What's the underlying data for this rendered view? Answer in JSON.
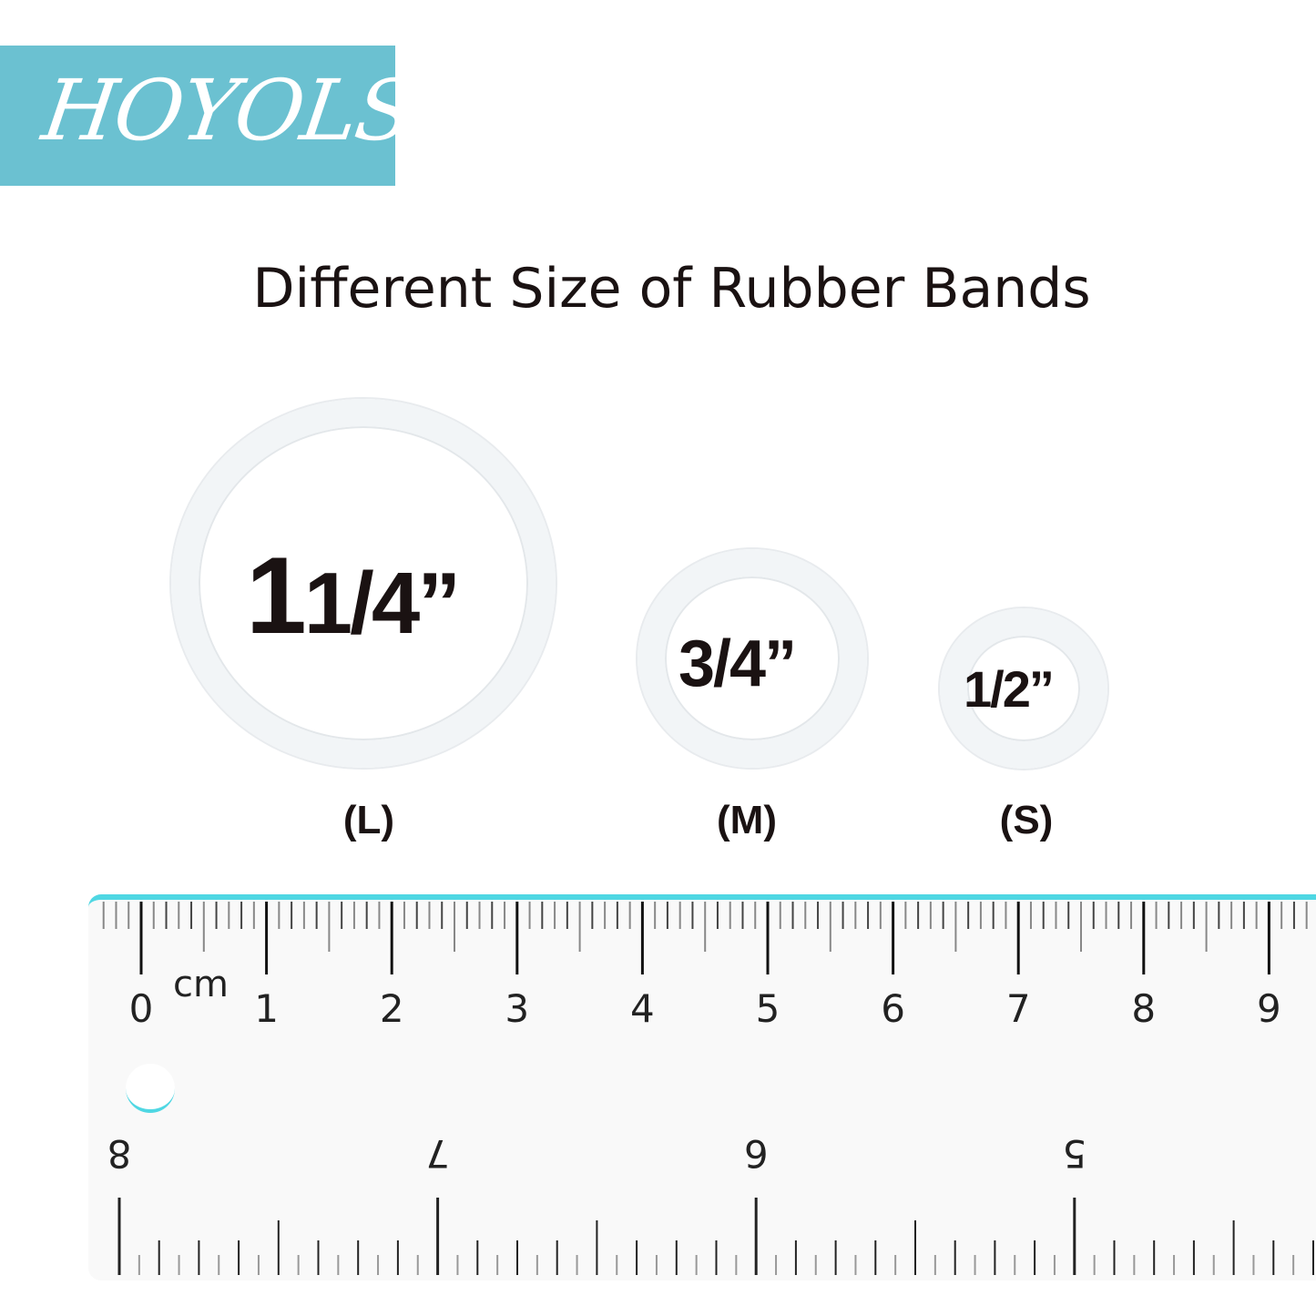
{
  "brand": {
    "logo_text": "HOYOLS",
    "color": "#6bc1d1"
  },
  "title": "Different Size of Rubber Bands",
  "bands": [
    {
      "size": "1 1/4”",
      "label": "(L)"
    },
    {
      "size": "3/4”",
      "label": "(M)"
    },
    {
      "size": "1/2”",
      "label": "(S)"
    }
  ],
  "ruler": {
    "unit": "cm",
    "cm_labels": [
      "0",
      "1",
      "2",
      "3",
      "4",
      "5",
      "6",
      "7",
      "8",
      "9"
    ],
    "inch_labels": [
      "8",
      "7",
      "6",
      "5"
    ],
    "accent": "#4fd7e3"
  }
}
